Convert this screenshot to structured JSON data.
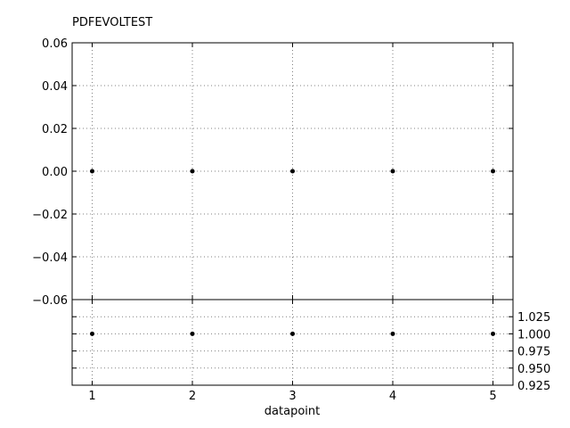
{
  "chart_data": [
    {
      "type": "scatter",
      "title": "PDFEVOLTEST",
      "xlabel": "",
      "ylabel": "",
      "xlim": [
        0.8,
        5.2
      ],
      "ylim": [
        -0.06,
        0.06
      ],
      "xticks": [
        1,
        2,
        3,
        4,
        5
      ],
      "yticks": [
        -0.06,
        -0.04,
        -0.02,
        0.0,
        0.02,
        0.04,
        0.06
      ],
      "ytick_labels": [
        "−0.06",
        "−0.04",
        "−0.02",
        "0.00",
        "0.02",
        "0.04",
        "0.06"
      ],
      "ytick_side": "left",
      "grid": true,
      "marker_color": "#000000",
      "series": [
        {
          "x": [
            1,
            2,
            3,
            4,
            5
          ],
          "y": [
            0,
            0,
            0,
            0,
            0
          ]
        }
      ]
    },
    {
      "type": "scatter",
      "title": "",
      "xlabel": "datapoint",
      "ylabel": "",
      "xlim": [
        0.8,
        5.2
      ],
      "ylim": [
        0.925,
        1.05
      ],
      "xticks": [
        1,
        2,
        3,
        4,
        5
      ],
      "xtick_labels": [
        "1",
        "2",
        "3",
        "4",
        "5"
      ],
      "yticks": [
        0.925,
        0.95,
        0.975,
        1.0,
        1.025
      ],
      "ytick_labels": [
        "0.925",
        "0.950",
        "0.975",
        "1.000",
        "1.025"
      ],
      "ytick_side": "right",
      "grid": true,
      "marker_color": "#000000",
      "series": [
        {
          "x": [
            1,
            2,
            3,
            4,
            5
          ],
          "y": [
            1,
            1,
            1,
            1,
            1
          ]
        }
      ]
    }
  ]
}
